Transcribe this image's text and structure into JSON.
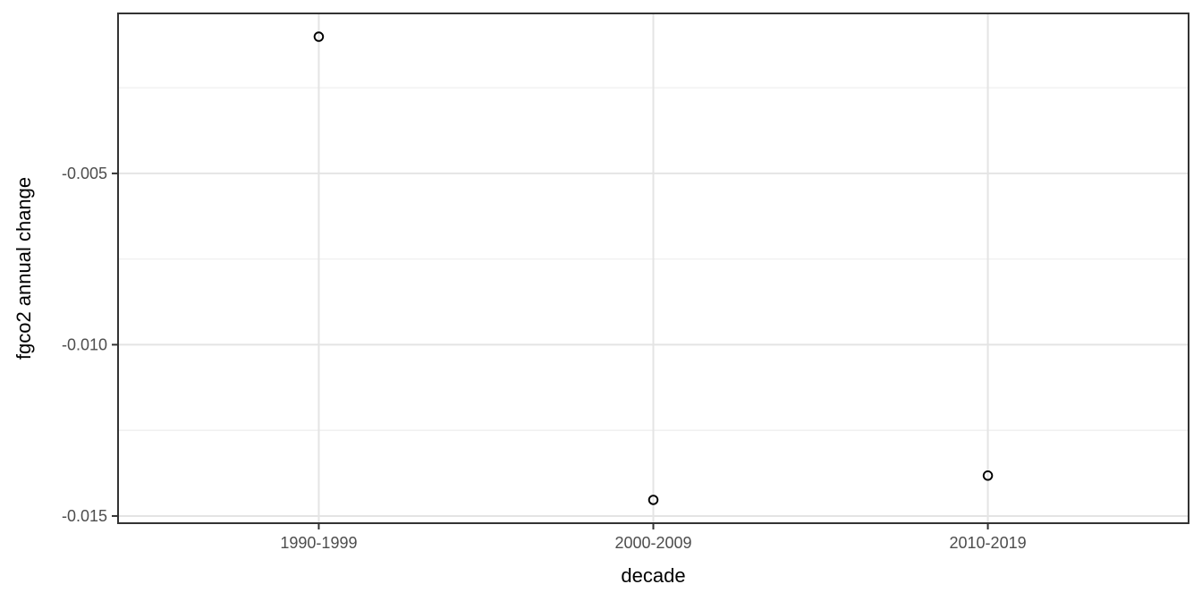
{
  "figure": {
    "title": "",
    "xlabel": "decade",
    "ylabel": "fgco2 annual change"
  },
  "chart_data": {
    "type": "scatter",
    "title": "",
    "xlabel": "decade",
    "ylabel": "fgco2 annual change",
    "categories": [
      "1990-1999",
      "2000-2009",
      "2010-2019"
    ],
    "values": [
      -0.00101,
      -0.01453,
      -0.01382
    ],
    "ylim": [
      -0.01521,
      -0.00033
    ],
    "yticks": [
      -0.005,
      -0.01,
      -0.015
    ],
    "ytick_labels": [
      "-0.005",
      "-0.010",
      "-0.015"
    ],
    "yticks_minor": [
      -0.0025,
      -0.0075,
      -0.0125
    ],
    "grid": "horizontal major+minor, vertical major at each category",
    "legend": "none",
    "marker": "open-circle",
    "colors": {
      "background": "#ffffff",
      "panel_background": "#ffffff",
      "panel_border": "#333333",
      "grid_major": "#e4e4e4",
      "grid_minor": "#efefef",
      "tick_mark": "#333333",
      "tick_label": "#4d4d4d",
      "axis_title": "#000000",
      "point_stroke": "#000000",
      "point_fill": "none"
    }
  }
}
